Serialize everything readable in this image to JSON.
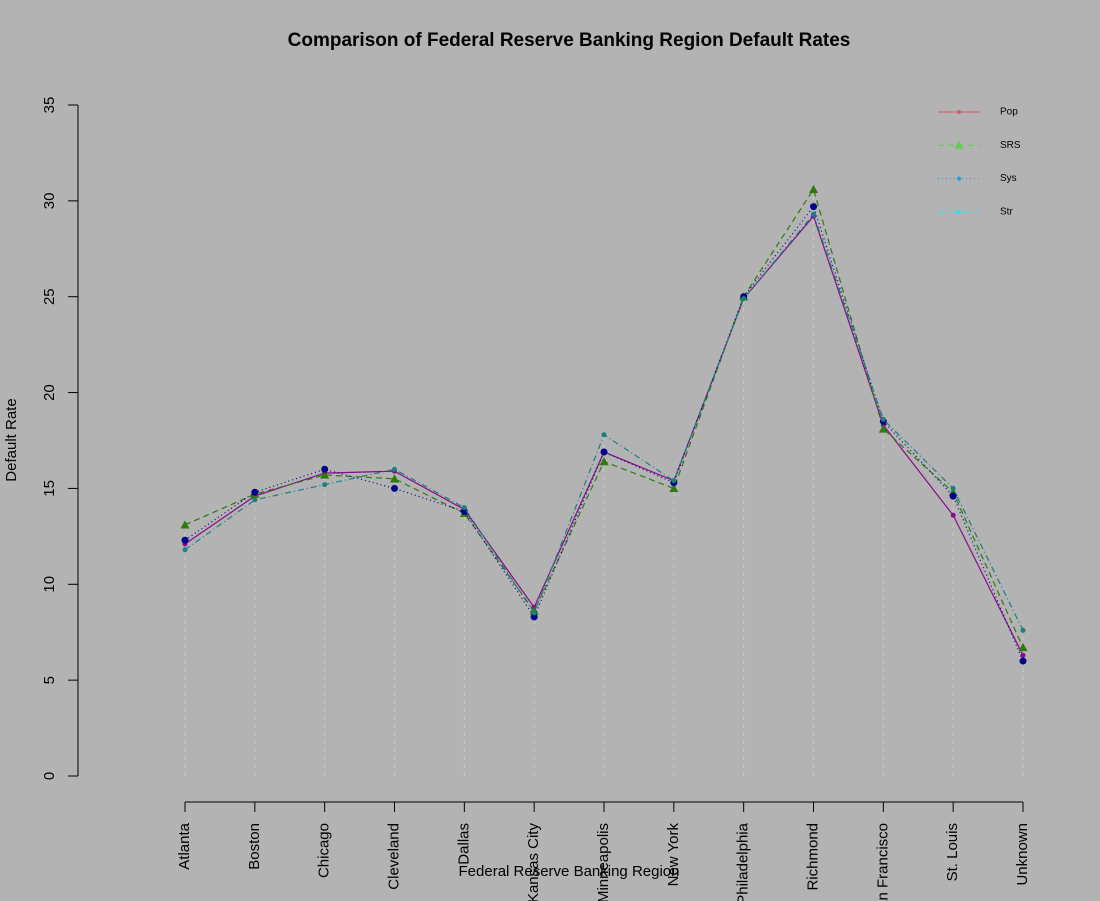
{
  "chart_data": {
    "type": "line",
    "title": "Comparison of Federal Reserve Banking Region Default Rates",
    "x_label": "Federal Reserve Banking Region",
    "y_label": "Default Rate",
    "background": "#b3b3b3",
    "categories": [
      "Atlanta",
      "Boston",
      "Chicago",
      "Cleveland",
      "Dallas",
      "Kansas City",
      "Minneapolis",
      "New York",
      "Philadelphia",
      "Richmond",
      "San Francisco",
      "St. Louis",
      "Unknown"
    ],
    "ylim": [
      0,
      35
    ],
    "yticks": [
      0,
      5,
      10,
      15,
      20,
      25,
      30,
      35
    ],
    "legend": "top-right",
    "series": [
      {
        "name": "Pop",
        "color": "#8b0a8b",
        "legend_color": "#df536b",
        "dash": "solid",
        "marker": "circle-small",
        "values": [
          12.1,
          14.6,
          15.8,
          15.9,
          13.9,
          8.8,
          16.9,
          15.4,
          24.9,
          29.2,
          18.3,
          13.6,
          6.3
        ]
      },
      {
        "name": "SRS",
        "color": "#2e7a0e",
        "legend_color": "#61d04f",
        "dash": "dashed",
        "marker": "triangle",
        "values": [
          13.1,
          14.7,
          15.7,
          15.5,
          13.7,
          8.6,
          16.4,
          15.0,
          25.0,
          30.6,
          18.1,
          14.8,
          6.7
        ]
      },
      {
        "name": "Sys",
        "color": "#00008b",
        "legend_color": "#2297e6",
        "dash": "dotted",
        "marker": "circle",
        "values": [
          12.3,
          14.8,
          16.0,
          15.0,
          13.8,
          8.3,
          16.9,
          15.3,
          25.0,
          29.7,
          18.5,
          14.6,
          6.0
        ]
      },
      {
        "name": "Str",
        "color": "#1a8080",
        "legend_color": "#28e2e5",
        "dash": "dotdash",
        "marker": "circle-small",
        "values": [
          11.8,
          14.4,
          15.2,
          16.0,
          14.0,
          8.5,
          17.8,
          15.4,
          24.9,
          29.3,
          18.6,
          15.0,
          7.6
        ]
      }
    ]
  }
}
